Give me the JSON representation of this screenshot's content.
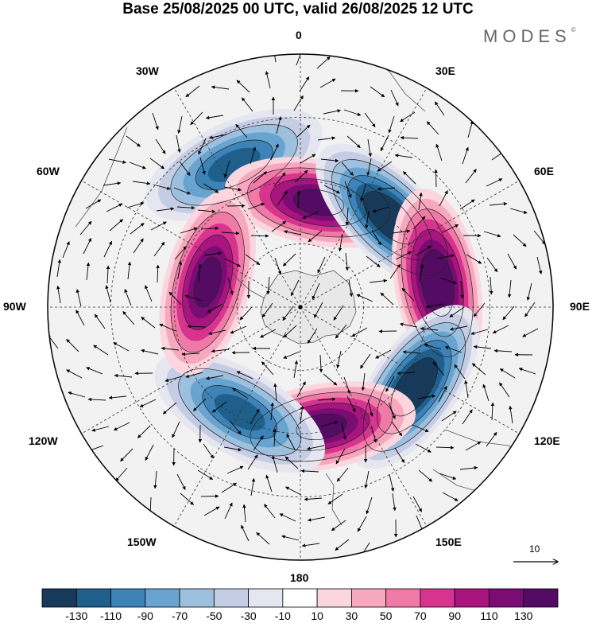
{
  "title": "Base 25/08/2025 00 UTC, valid 26/08/2025 12 UTC",
  "brand": "MODES",
  "brand_mark": "©",
  "longitude_labels": {
    "n": "0",
    "e30": "30E",
    "e60": "60E",
    "e90": "90E",
    "e120": "120E",
    "e150": "150E",
    "s": "180",
    "w150": "150W",
    "w120": "120W",
    "w90": "90W",
    "w60": "60W",
    "w30": "30W"
  },
  "vector_key": {
    "label": "10"
  },
  "colorbar": {
    "colors": [
      "#173a5a",
      "#1f5f8b",
      "#3d83b8",
      "#68a4cf",
      "#9ec0df",
      "#c5cde4",
      "#e6e6f0",
      "#ffffff",
      "#fbd6de",
      "#f7a8bf",
      "#f07aa6",
      "#d6348f",
      "#a8157f",
      "#7a0c73",
      "#530b63"
    ],
    "ticks": [
      "-130",
      "-110",
      "-90",
      "-70",
      "-50",
      "-30",
      "-10",
      "10",
      "30",
      "50",
      "70",
      "90",
      "110",
      "130"
    ]
  },
  "anomaly_centers": [
    {
      "name": "neg-south-atlantic",
      "lon": -25,
      "colat": 0.62,
      "value": -90
    },
    {
      "name": "pos-weddell",
      "lon": 10,
      "colat": 0.42,
      "value": 110
    },
    {
      "name": "neg-indian",
      "lon": 45,
      "colat": 0.5,
      "value": -130
    },
    {
      "name": "pos-east-indian",
      "lon": 80,
      "colat": 0.55,
      "value": 130
    },
    {
      "name": "neg-australia",
      "lon": 125,
      "colat": 0.55,
      "value": -130
    },
    {
      "name": "pos-ross",
      "lon": 170,
      "colat": 0.48,
      "value": 110
    },
    {
      "name": "neg-amundsen",
      "lon": -150,
      "colat": 0.48,
      "value": -90
    },
    {
      "name": "pos-drake",
      "lon": -75,
      "colat": 0.38,
      "value": 110
    }
  ]
}
